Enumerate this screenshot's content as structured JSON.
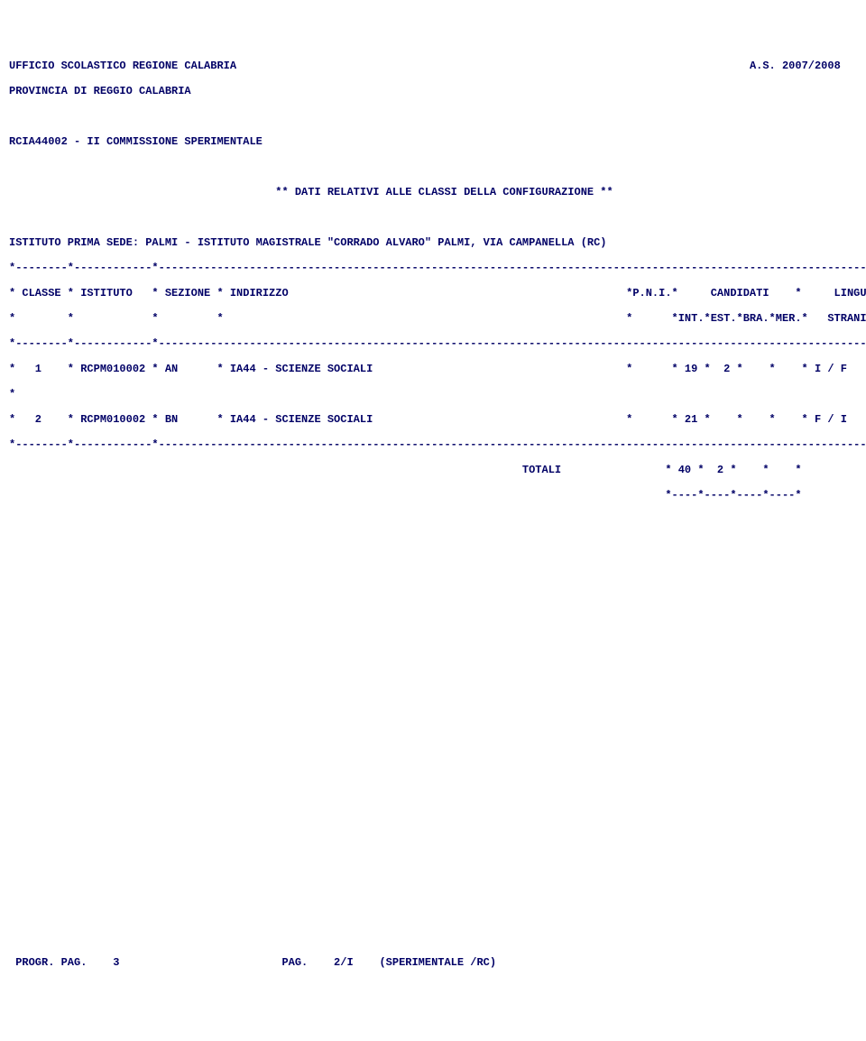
{
  "header": {
    "office": "UFFICIO SCOLASTICO REGIONE CALABRIA",
    "year": "A.S. 2007/2008",
    "province": "PROVINCIA DI REGGIO CALABRIA"
  },
  "commission": "RCIA44002 - II COMMISSIONE SPERIMENTALE",
  "section_title": "** DATI RELATIVI ALLE CLASSI DELLA CONFIGURAZIONE **",
  "institute": "ISTITUTO PRIMA SEDE: PALMI - ISTITUTO MAGISTRALE \"CORRADO ALVARO\" PALMI, VIA CAMPANELLA (RC)",
  "table": {
    "sep": "*--------*------------*-------------------------------------------------------------------------------------------------------------------------*",
    "header1": "* CLASSE * ISTITUTO   * SEZIONE * INDIRIZZO                                                    *P.N.I.*     CANDIDATI    *     LINGUE      *",
    "header2": "*        *            *         *                                                              *      *INT.*EST.*BRA.*MER.*   STRANIERE     *",
    "rows": [
      "*   1    * RCPM010002 * AN      * IA44 - SCIENZE SOCIALI                                       *      * 19 *  2 *    *    * I / F           *",
      "*                                                                                                                                           *",
      "*   2    * RCPM010002 * BN      * IA44 - SCIENZE SOCIALI                                       *      * 21 *    *    *    * F / I           *"
    ],
    "totals_line": "                                                                               TOTALI                * 40 *  2 *    *    *",
    "totals_close": "                                                                                                     *----*----*----*----*"
  },
  "footer": " PROGR. PAG.    3                         PAG.    2/I    (SPERIMENTALE /RC)",
  "spacer": "                                                                               "
}
